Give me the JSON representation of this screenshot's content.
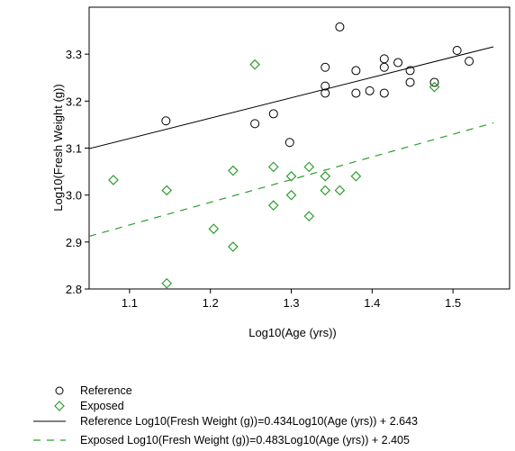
{
  "chart_data": {
    "type": "scatter",
    "xlabel": "Log10(Age (yrs))",
    "ylabel": "Log10(Fresh Weight (g))",
    "xlim": [
      1.05,
      1.57
    ],
    "ylim": [
      2.8,
      3.4
    ],
    "xticks": [
      "1.1",
      "1.2",
      "1.3",
      "1.4",
      "1.5"
    ],
    "yticks": [
      "2.8",
      "2.9",
      "3.0",
      "3.1",
      "3.2",
      "3.3"
    ],
    "grid": false,
    "legend_position": "below",
    "series": [
      {
        "name": "Reference",
        "marker": "circle",
        "color": "#000000",
        "points": [
          [
            1.145,
            3.158
          ],
          [
            1.255,
            3.152
          ],
          [
            1.278,
            3.173
          ],
          [
            1.298,
            3.112
          ],
          [
            1.342,
            3.272
          ],
          [
            1.342,
            3.232
          ],
          [
            1.342,
            3.217
          ],
          [
            1.36,
            3.358
          ],
          [
            1.38,
            3.265
          ],
          [
            1.38,
            3.217
          ],
          [
            1.397,
            3.222
          ],
          [
            1.415,
            3.29
          ],
          [
            1.415,
            3.272
          ],
          [
            1.415,
            3.217
          ],
          [
            1.432,
            3.282
          ],
          [
            1.447,
            3.265
          ],
          [
            1.447,
            3.24
          ],
          [
            1.477,
            3.24
          ],
          [
            1.505,
            3.308
          ],
          [
            1.52,
            3.285
          ]
        ]
      },
      {
        "name": "Exposed",
        "marker": "diamond",
        "color": "#2e9e2e",
        "points": [
          [
            1.08,
            3.032
          ],
          [
            1.146,
            3.01
          ],
          [
            1.146,
            2.812
          ],
          [
            1.204,
            2.928
          ],
          [
            1.228,
            3.052
          ],
          [
            1.228,
            2.89
          ],
          [
            1.255,
            3.278
          ],
          [
            1.278,
            3.06
          ],
          [
            1.278,
            2.978
          ],
          [
            1.3,
            3.04
          ],
          [
            1.3,
            3.0
          ],
          [
            1.322,
            3.06
          ],
          [
            1.322,
            2.955
          ],
          [
            1.342,
            3.04
          ],
          [
            1.342,
            3.01
          ],
          [
            1.36,
            3.01
          ],
          [
            1.38,
            3.04
          ],
          [
            1.477,
            3.23
          ]
        ]
      }
    ],
    "fit_lines": [
      {
        "name": "Reference Log10(Fresh Weight (g))=0.434Log10(Age (yrs)) + 2.643",
        "slope": 0.434,
        "intercept": 2.643,
        "style": "solid",
        "color": "#000000"
      },
      {
        "name": "Exposed Log10(Fresh Weight (g))=0.483Log10(Age (yrs)) + 2.405",
        "slope": 0.483,
        "intercept": 2.405,
        "style": "dashed",
        "color": "#2e9e2e"
      }
    ]
  }
}
